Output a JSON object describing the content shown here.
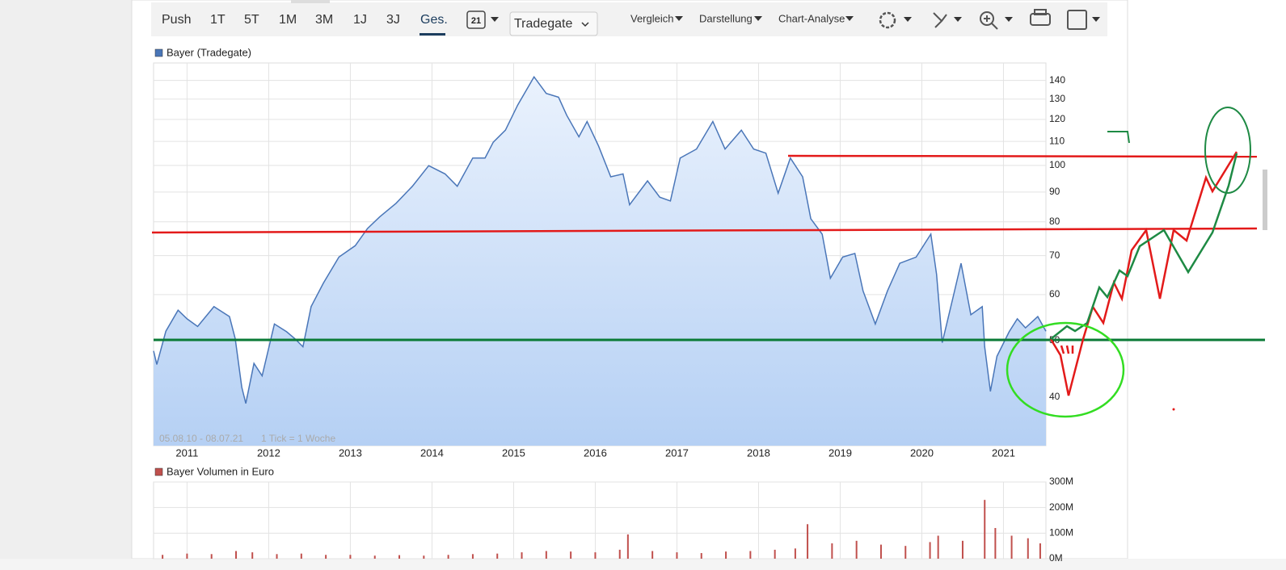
{
  "toolbar": {
    "periods": [
      "Push",
      "1T",
      "5T",
      "1M",
      "3M",
      "1J",
      "3J",
      "Ges."
    ],
    "calendar_day": "21",
    "exchange": "Tradegate",
    "menus": [
      "Vergleich",
      "Darstellung",
      "Chart-Analyse"
    ]
  },
  "chart_data": [
    {
      "type": "area",
      "range_label": "05.08.10 - 08.07.21",
      "tick_note": "1 Tick = 1 Woche",
      "log_scale": true,
      "grid": true,
      "x": [
        2010.59,
        2010.63,
        2010.74,
        2010.89,
        2011.0,
        2011.13,
        2011.33,
        2011.52,
        2011.59,
        2011.67,
        2011.72,
        2011.82,
        2011.92,
        2012.07,
        2012.22,
        2012.32,
        2012.42,
        2012.52,
        2012.67,
        2012.86,
        2013.06,
        2013.21,
        2013.36,
        2013.56,
        2013.76,
        2013.96,
        2014.16,
        2014.31,
        2014.5,
        2014.65,
        2014.75,
        2014.9,
        2015.05,
        2015.25,
        2015.4,
        2015.55,
        2015.65,
        2015.8,
        2015.9,
        2016.04,
        2016.19,
        2016.34,
        2016.42,
        2016.64,
        2016.79,
        2016.92,
        2017.04,
        2017.24,
        2017.44,
        2017.59,
        2017.79,
        2017.94,
        2018.09,
        2018.24,
        2018.39,
        2018.54,
        2018.64,
        2018.78,
        2018.88,
        2019.03,
        2019.18,
        2019.28,
        2019.43,
        2019.58,
        2019.73,
        2019.93,
        2020.11,
        2020.18,
        2020.25,
        2020.38,
        2020.48,
        2020.6,
        2020.74,
        2020.77,
        2020.84,
        2020.92,
        2021.07,
        2021.17,
        2021.27,
        2021.42,
        2021.52
      ],
      "series": [
        {
          "name": "Bayer (Tradegate)",
          "color": "#4a76b8",
          "values": [
            48,
            45.5,
            51.9,
            56.4,
            54.5,
            52.9,
            57.2,
            55,
            50.4,
            41.6,
            39,
            45.7,
            43.5,
            53.4,
            51.8,
            50.4,
            48.8,
            57.2,
            62.8,
            69.6,
            72.8,
            77.9,
            81.6,
            86.1,
            92.1,
            99.9,
            96.7,
            92.1,
            103,
            103,
            109.6,
            115,
            127,
            142,
            133,
            131,
            122,
            112,
            119,
            108,
            95.6,
            96.7,
            85.6,
            94.1,
            88.2,
            86.9,
            103,
            106.7,
            119,
            106.7,
            115,
            106.7,
            105,
            89.6,
            103,
            95.6,
            81,
            76.2,
            64,
            69.6,
            70.6,
            60.9,
            53.4,
            60.9,
            67.9,
            69.6,
            76.2,
            65,
            49.6,
            59.2,
            67.9,
            55.4,
            57.2,
            48.8,
            40.9,
            47,
            51.8,
            54.5,
            52.6,
            55,
            51.9
          ]
        }
      ],
      "xlim": [
        2010.59,
        2021.52
      ],
      "xticks": [
        2011,
        2012,
        2013,
        2014,
        2015,
        2016,
        2017,
        2018,
        2019,
        2020,
        2021
      ],
      "ylim": [
        33,
        150
      ],
      "yticks": [
        40,
        50,
        60,
        70,
        80,
        90,
        100,
        110,
        120,
        130,
        140
      ]
    },
    {
      "type": "bar",
      "grid": true,
      "x": [
        2010.7,
        2011.0,
        2011.3,
        2011.6,
        2011.8,
        2012.1,
        2012.4,
        2012.7,
        2013.0,
        2013.3,
        2013.6,
        2013.9,
        2014.2,
        2014.5,
        2014.8,
        2015.1,
        2015.4,
        2015.7,
        2016.0,
        2016.3,
        2016.4,
        2016.7,
        2017.0,
        2017.3,
        2017.6,
        2017.9,
        2018.2,
        2018.45,
        2018.6,
        2018.9,
        2019.2,
        2019.5,
        2019.8,
        2020.1,
        2020.2,
        2020.5,
        2020.77,
        2020.9,
        2021.1,
        2021.3,
        2021.45
      ],
      "series": [
        {
          "name": "Bayer Volumen in Euro",
          "color": "#c0504d",
          "values": [
            15000000,
            20000000,
            18000000,
            30000000,
            25000000,
            18000000,
            20000000,
            15000000,
            15000000,
            12000000,
            14000000,
            12000000,
            15000000,
            18000000,
            20000000,
            25000000,
            30000000,
            28000000,
            25000000,
            35000000,
            95000000,
            30000000,
            25000000,
            22000000,
            28000000,
            30000000,
            35000000,
            40000000,
            135000000,
            60000000,
            70000000,
            55000000,
            50000000,
            65000000,
            90000000,
            70000000,
            230000000,
            120000000,
            90000000,
            80000000,
            60000000
          ]
        }
      ],
      "xlim": [
        2010.59,
        2021.52
      ],
      "ylim": [
        0,
        300000000
      ],
      "yticks": [
        {
          "value": 0,
          "label": "0M"
        },
        {
          "value": 100000000,
          "label": "100M"
        },
        {
          "value": 200000000,
          "label": "200M"
        },
        {
          "value": 300000000,
          "label": "300M"
        }
      ]
    }
  ]
}
